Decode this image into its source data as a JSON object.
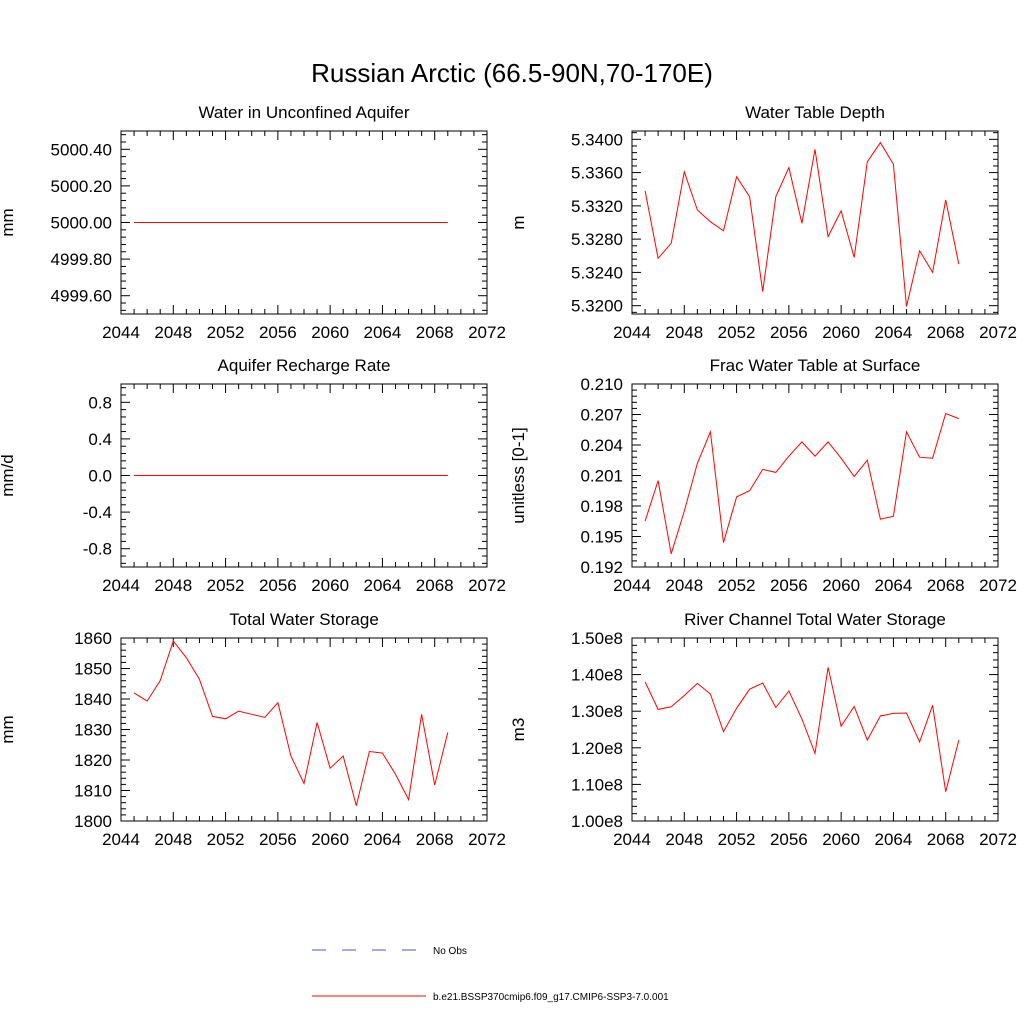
{
  "figure_title": "Russian Arctic (66.5-90N,70-170E)",
  "colors": {
    "model": "#ff0000",
    "obs": "#4f4fc8",
    "axis": "#000000"
  },
  "legend": [
    {
      "label": "No Obs",
      "style": "dashed",
      "color": "#4f4fc8"
    },
    {
      "label": "b.e21.BSSP370cmip6.f09_g17.CMIP6-SSP3-7.0.001",
      "style": "solid",
      "color": "#ff0000"
    }
  ],
  "chart_data": [
    {
      "type": "line",
      "title": "Water in Unconfined Aquifer",
      "ylabel": "mm",
      "xlim": [
        2044,
        2072
      ],
      "ylim": [
        4999.5,
        5000.5
      ],
      "x_ticks": [
        "2044",
        "2048",
        "2052",
        "2056",
        "2060",
        "2064",
        "2068",
        "2072"
      ],
      "y_ticks": [
        "4999.60",
        "4999.80",
        "5000.00",
        "5000.20",
        "5000.40"
      ],
      "x": [
        2045,
        2046,
        2047,
        2048,
        2049,
        2050,
        2051,
        2052,
        2053,
        2054,
        2055,
        2056,
        2057,
        2058,
        2059,
        2060,
        2061,
        2062,
        2063,
        2064,
        2065,
        2066,
        2067,
        2068,
        2069
      ],
      "series": [
        {
          "values": [
            5000,
            5000,
            5000,
            5000,
            5000,
            5000,
            5000,
            5000,
            5000,
            5000,
            5000,
            5000,
            5000,
            5000,
            5000,
            5000,
            5000,
            5000,
            5000,
            5000,
            5000,
            5000,
            5000,
            5000,
            5000
          ]
        }
      ]
    },
    {
      "type": "line",
      "title": "Water Table Depth",
      "ylabel": "m",
      "xlim": [
        2044,
        2072
      ],
      "ylim": [
        5.319,
        5.341
      ],
      "x_ticks": [
        "2044",
        "2048",
        "2052",
        "2056",
        "2060",
        "2064",
        "2068",
        "2072"
      ],
      "y_ticks": [
        "5.3200",
        "5.3240",
        "5.3280",
        "5.3320",
        "5.3360",
        "5.3400"
      ],
      "x": [
        2045,
        2046,
        2047,
        2048,
        2049,
        2050,
        2051,
        2052,
        2053,
        2054,
        2055,
        2056,
        2057,
        2058,
        2059,
        2060,
        2061,
        2062,
        2063,
        2064,
        2065,
        2066,
        2067,
        2068,
        2069
      ],
      "series": [
        {
          "values": [
            5.3338,
            5.3257,
            5.3275,
            5.3361,
            5.3315,
            5.3301,
            5.329,
            5.3355,
            5.3331,
            5.3217,
            5.3331,
            5.3366,
            5.3299,
            5.3388,
            5.3283,
            5.3314,
            5.3258,
            5.3373,
            5.3396,
            5.337,
            5.3199,
            5.3266,
            5.324,
            5.3327,
            5.325
          ]
        }
      ]
    },
    {
      "type": "line",
      "title": "Aquifer Recharge Rate",
      "ylabel": "mm/d",
      "xlim": [
        2044,
        2072
      ],
      "ylim": [
        -1.0,
        1.0
      ],
      "x_ticks": [
        "2044",
        "2048",
        "2052",
        "2056",
        "2060",
        "2064",
        "2068",
        "2072"
      ],
      "y_ticks": [
        "-0.8",
        "-0.4",
        "0.0",
        "0.4",
        "0.8"
      ],
      "x": [
        2045,
        2046,
        2047,
        2048,
        2049,
        2050,
        2051,
        2052,
        2053,
        2054,
        2055,
        2056,
        2057,
        2058,
        2059,
        2060,
        2061,
        2062,
        2063,
        2064,
        2065,
        2066,
        2067,
        2068,
        2069
      ],
      "series": [
        {
          "values": [
            0,
            0,
            0,
            0,
            0,
            0,
            0,
            0,
            0,
            0,
            0,
            0,
            0,
            0,
            0,
            0,
            0,
            0,
            0,
            0,
            0,
            0,
            0,
            0,
            0
          ]
        }
      ]
    },
    {
      "type": "line",
      "title": "Frac Water Table at Surface",
      "ylabel": "unitless [0-1]",
      "xlim": [
        2044,
        2072
      ],
      "ylim": [
        0.192,
        0.21
      ],
      "x_ticks": [
        "2044",
        "2048",
        "2052",
        "2056",
        "2060",
        "2064",
        "2068",
        "2072"
      ],
      "y_ticks": [
        "0.192",
        "0.195",
        "0.198",
        "0.201",
        "0.204",
        "0.207",
        "0.210"
      ],
      "x": [
        2045,
        2046,
        2047,
        2048,
        2049,
        2050,
        2051,
        2052,
        2053,
        2054,
        2055,
        2056,
        2057,
        2058,
        2059,
        2060,
        2061,
        2062,
        2063,
        2064,
        2065,
        2066,
        2067,
        2068,
        2069
      ],
      "series": [
        {
          "values": [
            0.1965,
            0.2005,
            0.1933,
            0.1975,
            0.2022,
            0.2053,
            0.1944,
            0.1989,
            0.1995,
            0.2016,
            0.2013,
            0.2029,
            0.2043,
            0.2029,
            0.2043,
            0.2027,
            0.2009,
            0.2025,
            0.1967,
            0.197,
            0.2053,
            0.2028,
            0.2027,
            0.2071,
            0.2066
          ]
        }
      ]
    },
    {
      "type": "line",
      "title": "Total Water Storage",
      "ylabel": "mm",
      "xlim": [
        2044,
        2072
      ],
      "ylim": [
        1800,
        1860
      ],
      "x_ticks": [
        "2044",
        "2048",
        "2052",
        "2056",
        "2060",
        "2064",
        "2068",
        "2072"
      ],
      "y_ticks": [
        "1800",
        "1810",
        "1820",
        "1830",
        "1840",
        "1850",
        "1860"
      ],
      "x": [
        2045,
        2046,
        2047,
        2048,
        2049,
        2050,
        2051,
        2052,
        2053,
        2054,
        2055,
        2056,
        2057,
        2058,
        2059,
        2060,
        2061,
        2062,
        2063,
        2064,
        2065,
        2066,
        2067,
        2068,
        2069
      ],
      "series": [
        {
          "values": [
            1842,
            1839.3,
            1846,
            1859,
            1853.5,
            1846.5,
            1834.3,
            1833.5,
            1836,
            1835,
            1834,
            1838.8,
            1821.3,
            1812.3,
            1832.3,
            1817.3,
            1821.3,
            1805,
            1822.8,
            1822.3,
            1815.3,
            1807,
            1835,
            1811.8,
            1829
          ]
        }
      ]
    },
    {
      "type": "line",
      "title": "River Channel Total Water Storage",
      "ylabel": "m3",
      "xlim": [
        2044,
        2072
      ],
      "ylim": [
        100000000,
        150000000
      ],
      "x_ticks": [
        "2044",
        "2048",
        "2052",
        "2056",
        "2060",
        "2064",
        "2068",
        "2072"
      ],
      "y_ticks": [
        "1.00e8",
        "1.10e8",
        "1.20e8",
        "1.30e8",
        "1.40e8",
        "1.50e8"
      ],
      "x": [
        2045,
        2046,
        2047,
        2048,
        2049,
        2050,
        2051,
        2052,
        2053,
        2054,
        2055,
        2056,
        2057,
        2058,
        2059,
        2060,
        2061,
        2062,
        2063,
        2064,
        2065,
        2066,
        2067,
        2068,
        2069
      ],
      "series": [
        {
          "values": [
            138000000,
            130500000,
            131200000,
            134300000,
            137600000,
            134700000,
            124400000,
            130800000,
            136000000,
            137700000,
            131000000,
            135500000,
            127900000,
            118500000,
            142000000,
            125900000,
            131300000,
            122100000,
            128700000,
            129400000,
            129500000,
            121600000,
            131600000,
            108000000,
            122100000
          ]
        }
      ]
    }
  ]
}
